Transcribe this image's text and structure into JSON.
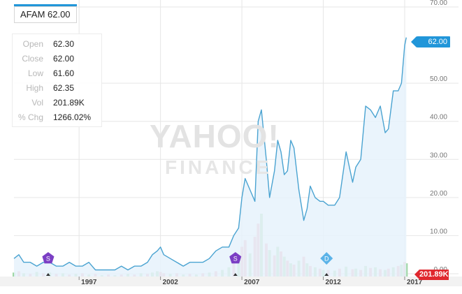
{
  "ticker": {
    "label": "AFAM 62.00"
  },
  "ohlc": [
    {
      "label": "Open",
      "value": "62.30"
    },
    {
      "label": "Close",
      "value": "62.00"
    },
    {
      "label": "Low",
      "value": "61.60"
    },
    {
      "label": "High",
      "value": "62.35"
    },
    {
      "label": "Vol",
      "value": "201.89K"
    },
    {
      "label": "% Chg",
      "value": "1266.02%"
    }
  ],
  "watermark": {
    "line1": "YAHOO!",
    "line2": "FINANCE"
  },
  "current_price_label": "62.00",
  "current_volume_label": "201.89K",
  "event_markers": [
    {
      "label": "S",
      "year": 1995.1,
      "kind": "split",
      "color": "#7b3fc4"
    },
    {
      "label": "S",
      "year": 2006.6,
      "kind": "split",
      "color": "#7b3fc4"
    },
    {
      "label": "D",
      "year": 2012.2,
      "kind": "dividend",
      "color": "#5bb3e8"
    }
  ],
  "colors": {
    "line": "#4aa3d1",
    "area": "#e6f2fb",
    "volume_up": "#9ed6a4",
    "volume_down": "#f2a3ad",
    "grid": "#e6e6e6",
    "accent": "#2196d9",
    "volume_tag": "#e0282f"
  },
  "chart_data": {
    "type": "line",
    "title": "AFAM",
    "y_axis": {
      "position": "right",
      "range": [
        0,
        70
      ],
      "ticks": [
        "0.00",
        "10.00",
        "20.00",
        "30.00",
        "40.00",
        "50.00",
        "70.00"
      ]
    },
    "x_axis": {
      "range": [
        1993.0,
        2017.3
      ],
      "ticks": [
        "1997",
        "2002",
        "2007",
        "2012",
        "2017"
      ]
    },
    "grid": true,
    "series": [
      {
        "x": [
          1993.0,
          1993.3,
          1993.6,
          1994.0,
          1994.4,
          1994.8,
          1995.2,
          1995.6,
          1996.0,
          1996.4,
          1996.8,
          1997.2,
          1997.6,
          1998.0,
          1998.4,
          1998.8,
          1999.2,
          1999.6,
          2000.0,
          2000.4,
          2000.8,
          2001.2,
          2001.5,
          2001.8,
          2002.0,
          2002.2,
          2002.6,
          2003.0,
          2003.4,
          2003.8,
          2004.2,
          2004.6,
          2005.0,
          2005.4,
          2005.8,
          2006.2,
          2006.5,
          2006.8,
          2007.0,
          2007.2,
          2007.5,
          2007.8,
          2008.0,
          2008.2,
          2008.5,
          2008.7,
          2009.0,
          2009.2,
          2009.4,
          2009.6,
          2009.8,
          2010.0,
          2010.2,
          2010.5,
          2010.8,
          2011.0,
          2011.2,
          2011.5,
          2011.8,
          2012.0,
          2012.3,
          2012.7,
          2013.0,
          2013.4,
          2013.8,
          2014.0,
          2014.3,
          2014.6,
          2014.9,
          2015.2,
          2015.5,
          2015.8,
          2016.0,
          2016.3,
          2016.6,
          2016.8,
          2017.0,
          2017.1
        ],
        "y": [
          4,
          5,
          3,
          3,
          2,
          3,
          3,
          2,
          2,
          3,
          2,
          2,
          3,
          1,
          1,
          1,
          1,
          2,
          1,
          2,
          2,
          3,
          5,
          6,
          7,
          5,
          4,
          3,
          2,
          3,
          3,
          3,
          4,
          6,
          7,
          7,
          10,
          12,
          20,
          25,
          22,
          19,
          40,
          43,
          30,
          20,
          27,
          35,
          32,
          26,
          27,
          35,
          33,
          22,
          14,
          17,
          23,
          20,
          19,
          19,
          18,
          18,
          20,
          32,
          24,
          28,
          30,
          44,
          43,
          41,
          44,
          37,
          38,
          48,
          48,
          50,
          60,
          62
        ]
      }
    ],
    "volume": [
      0.6,
      0.8,
      0.5,
      0.4,
      0.7,
      0.5,
      0.6,
      0.4,
      0.5,
      0.3,
      0.4,
      0.5,
      0.3,
      0.4,
      0.2,
      0.3,
      0.2,
      0.3,
      0.4,
      0.3,
      0.5,
      0.4,
      0.6,
      0.8,
      0.7,
      0.5,
      0.4,
      0.5,
      0.3,
      0.4,
      0.3,
      0.5,
      0.6,
      0.8,
      1.0,
      1.4,
      2.0,
      3.0,
      4.5,
      5.5,
      3.5,
      6.0,
      8.0,
      9.5,
      5.0,
      4.0,
      3.2,
      4.5,
      3.8,
      3.0,
      2.4,
      2.0,
      1.8,
      2.4,
      3.0,
      2.0,
      1.6,
      1.4,
      1.2,
      1.0,
      1.0,
      0.9,
      1.2,
      1.5,
      1.1,
      1.2,
      1.0,
      1.6,
      1.3,
      1.4,
      1.1,
      1.0,
      1.2,
      1.4,
      1.6,
      1.8,
      2.2,
      2.0
    ],
    "volume_up": [
      true,
      false,
      true,
      false,
      true,
      false,
      true,
      false,
      true,
      false,
      true,
      false,
      true,
      false,
      true,
      false,
      true,
      false,
      true,
      false,
      true,
      false,
      true,
      true,
      false,
      false,
      true,
      false,
      true,
      false,
      true,
      false,
      true,
      false,
      true,
      true,
      false,
      true,
      false,
      false,
      true,
      false,
      false,
      true,
      false,
      true,
      false,
      true,
      false,
      true,
      false,
      true,
      false,
      true,
      false,
      true,
      false,
      true,
      false,
      true,
      false,
      true,
      false,
      true,
      false,
      true,
      false,
      true,
      false,
      true,
      false,
      true,
      false,
      true,
      false,
      true,
      false,
      true
    ]
  }
}
